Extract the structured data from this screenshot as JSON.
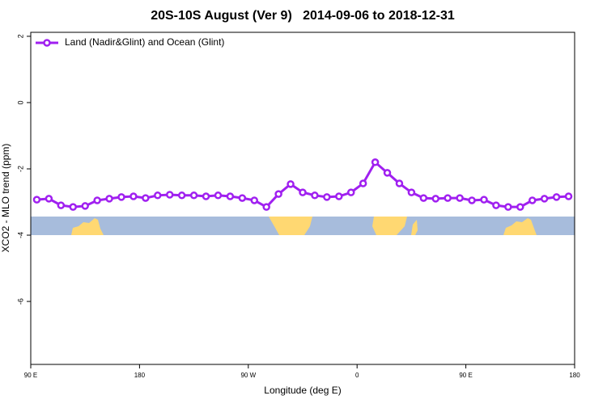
{
  "chart_data": {
    "type": "line",
    "title": "20S-10S August (Ver 9)   2014-09-06 to 2018-12-31",
    "x_label": "Longitude (deg E)",
    "y_label": "XCO2 - MLO trend (ppm)",
    "legend_position": "top-left",
    "xlim": [
      90,
      540
    ],
    "xticks": [
      {
        "value": 90,
        "label": "90 E"
      },
      {
        "value": 180,
        "label": "180"
      },
      {
        "value": 270,
        "label": "90 W"
      },
      {
        "value": 360,
        "label": "0"
      },
      {
        "value": 450,
        "label": "90 E"
      },
      {
        "value": 540,
        "label": "180"
      }
    ],
    "ylim": [
      -7.9,
      2.12
    ],
    "yticks": [
      2,
      0,
      -2,
      -4,
      -6
    ],
    "x": [
      95,
      105,
      115,
      125,
      135,
      145,
      155,
      165,
      175,
      185,
      195,
      205,
      215,
      225,
      235,
      245,
      255,
      265,
      275,
      285,
      295,
      305,
      315,
      325,
      335,
      345,
      355,
      365,
      375,
      385,
      395,
      405,
      415,
      425,
      435,
      445,
      455,
      465,
      475,
      485,
      495,
      505,
      515,
      525,
      535
    ],
    "series": [
      {
        "name": "Land (Nadir&Glint) and Ocean (Glint)",
        "color": "#a020f0",
        "values": [
          -2.93,
          -2.9,
          -3.1,
          -3.15,
          -3.12,
          -2.95,
          -2.9,
          -2.85,
          -2.83,
          -2.88,
          -2.8,
          -2.78,
          -2.8,
          -2.8,
          -2.83,
          -2.8,
          -2.83,
          -2.88,
          -2.95,
          -3.15,
          -2.76,
          -2.46,
          -2.71,
          -2.8,
          -2.85,
          -2.83,
          -2.71,
          -2.44,
          -1.8,
          -2.12,
          -2.44,
          -2.71,
          -2.88,
          -2.9,
          -2.88,
          -2.88,
          -2.95,
          -2.93,
          -3.1,
          -3.15,
          -3.15,
          -2.95,
          -2.9,
          -2.85,
          -2.83
        ]
      }
    ]
  }
}
